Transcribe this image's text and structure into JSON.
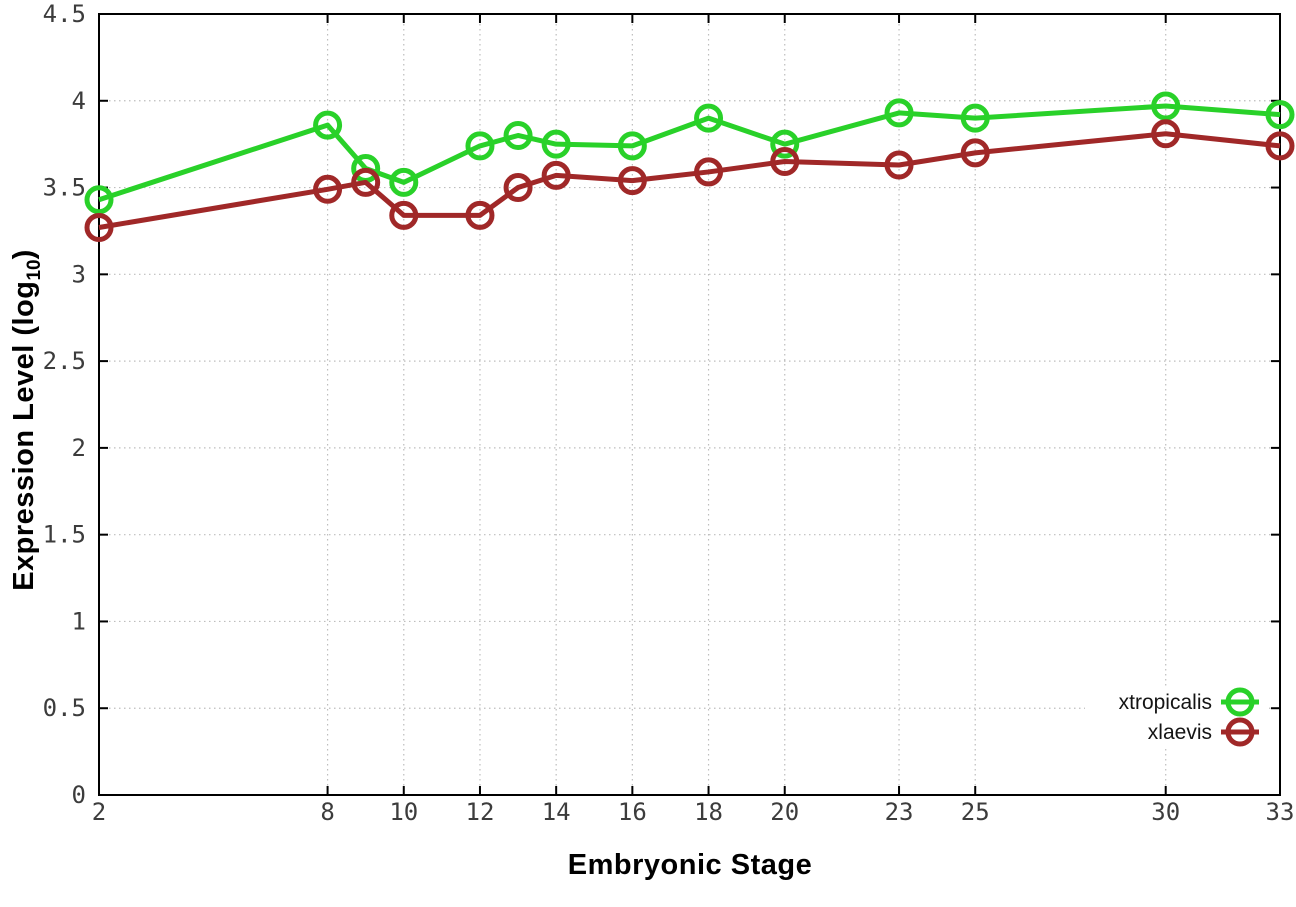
{
  "figure": {
    "background": "#ffffff",
    "border_color": "#000000",
    "grid_color": "#bdbdbd",
    "tick_label_color": "#3c3c3c"
  },
  "axes": {
    "xlabel": "Embryonic Stage",
    "ylabel_main": "Expression Level (log",
    "ylabel_sub": "10",
    "ylabel_close": ")",
    "x_tick_labels": [
      "2",
      "8",
      "10",
      "12",
      "14",
      "16",
      "18",
      "20",
      "23",
      "25",
      "30",
      "33"
    ],
    "y_tick_labels": [
      "0",
      "0.5",
      "1",
      "1.5",
      "2",
      "2.5",
      "3",
      "3.5",
      "4",
      "4.5"
    ]
  },
  "legend": {
    "items": [
      {
        "label": "xtropicalis",
        "color": "#29d129"
      },
      {
        "label": "xlaevis",
        "color": "#a02828"
      }
    ]
  },
  "chart_data": {
    "type": "line",
    "title": "",
    "xlabel": "Embryonic Stage",
    "ylabel": "Expression Level (log10)",
    "x": [
      2,
      8,
      9,
      10,
      12,
      13,
      14,
      16,
      18,
      20,
      23,
      25,
      30,
      33
    ],
    "series": [
      {
        "name": "xtropicalis",
        "color": "#29d129",
        "values": [
          3.43,
          3.86,
          3.61,
          3.53,
          3.74,
          3.8,
          3.75,
          3.74,
          3.9,
          3.75,
          3.93,
          3.9,
          3.97,
          3.92
        ]
      },
      {
        "name": "xlaevis",
        "color": "#a02828",
        "values": [
          3.27,
          3.49,
          3.53,
          3.34,
          3.34,
          3.5,
          3.57,
          3.54,
          3.59,
          3.65,
          3.63,
          3.7,
          3.81,
          3.74
        ]
      }
    ],
    "xticks": [
      2,
      8,
      10,
      12,
      14,
      16,
      18,
      20,
      23,
      25,
      30,
      33
    ],
    "yticks": [
      0,
      0.5,
      1,
      1.5,
      2,
      2.5,
      3,
      3.5,
      4,
      4.5
    ],
    "xlim": [
      2,
      33
    ],
    "ylim": [
      0,
      4.5
    ],
    "grid": true,
    "legend_position": "bottom-right",
    "marker": "open-circle",
    "line_width": 5,
    "marker_radius": 12
  }
}
